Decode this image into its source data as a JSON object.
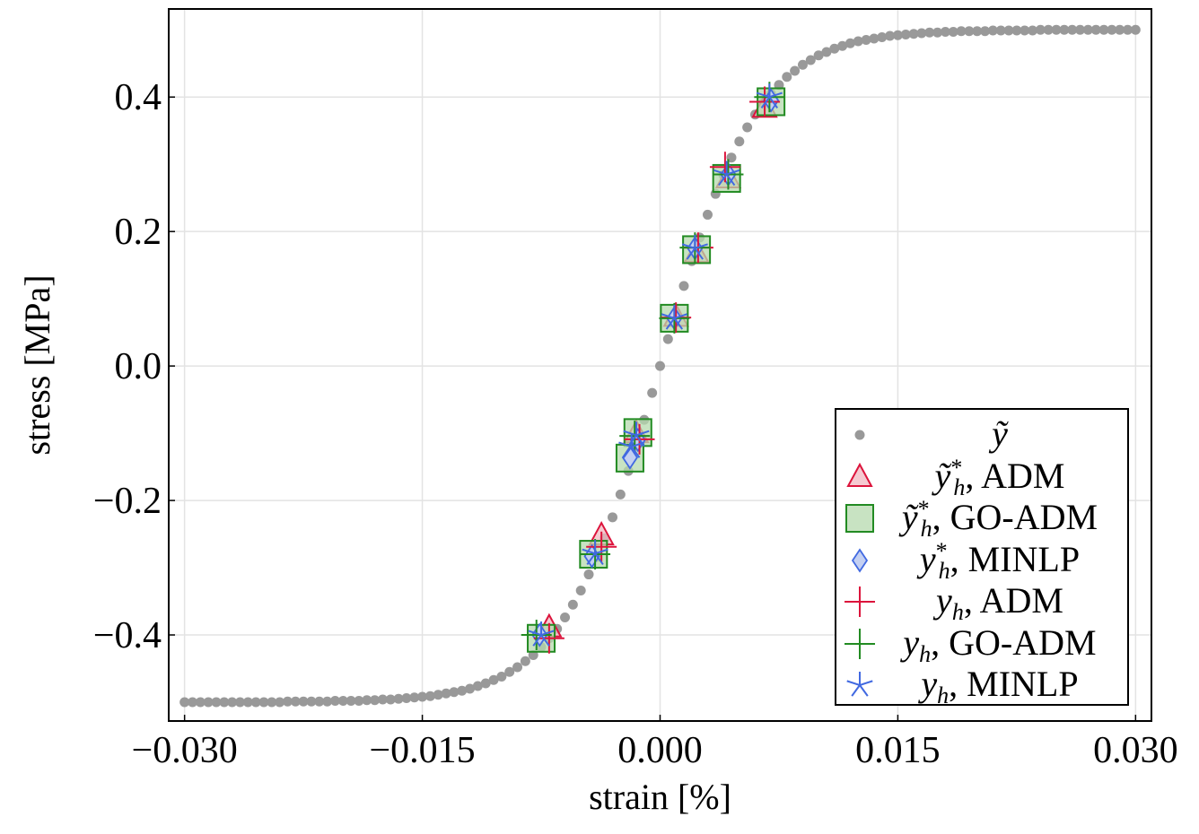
{
  "chart_data": {
    "type": "scatter",
    "xlabel": "strain [%]",
    "ylabel": "stress [MPa]",
    "xlim": [
      -0.031,
      0.031
    ],
    "ylim": [
      -0.528,
      0.531
    ],
    "xticks": [
      -0.03,
      -0.015,
      0.0,
      0.015,
      0.03
    ],
    "xtick_labels": [
      "−0.030",
      "−0.015",
      "0.000",
      "0.015",
      "0.030"
    ],
    "yticks": [
      -0.4,
      -0.2,
      0.0,
      0.2,
      0.4
    ],
    "ytick_labels": [
      "−0.4",
      "−0.2",
      "0.0",
      "0.2",
      "0.4"
    ],
    "grid": true,
    "legend_position": "bottom-right",
    "series": [
      {
        "label": {
          "symbol": "ỹ",
          "sup": "",
          "sub": "",
          "method": ""
        },
        "marker": "circle",
        "color": "#999999",
        "fill": "#999999",
        "x": [
          -0.03,
          -0.0295,
          -0.029,
          -0.0285,
          -0.028,
          -0.0275,
          -0.027,
          -0.0265,
          -0.026,
          -0.0255,
          -0.025,
          -0.0245,
          -0.024,
          -0.0235,
          -0.023,
          -0.0225,
          -0.022,
          -0.0215,
          -0.021,
          -0.0205,
          -0.02,
          -0.0195,
          -0.019,
          -0.0185,
          -0.018,
          -0.0175,
          -0.017,
          -0.0165,
          -0.016,
          -0.0155,
          -0.015,
          -0.0145,
          -0.014,
          -0.0135,
          -0.013,
          -0.0125,
          -0.012,
          -0.0115,
          -0.011,
          -0.0105,
          -0.01,
          -0.0095,
          -0.009,
          -0.0085,
          -0.008,
          -0.0075,
          -0.007,
          -0.0065,
          -0.006,
          -0.0055,
          -0.005,
          -0.0045,
          -0.004,
          -0.0035,
          -0.003,
          -0.0025,
          -0.002,
          -0.0015,
          -0.001,
          -0.0005,
          0,
          0.0005,
          0.001,
          0.0015,
          0.002,
          0.0025,
          0.003,
          0.0035,
          0.004,
          0.0045,
          0.005,
          0.0055,
          0.006,
          0.0065,
          0.007,
          0.0075,
          0.008,
          0.0085,
          0.009,
          0.0095,
          0.01,
          0.0105,
          0.011,
          0.0115,
          0.012,
          0.0125,
          0.013,
          0.0135,
          0.014,
          0.0145,
          0.015,
          0.0155,
          0.016,
          0.0165,
          0.017,
          0.0175,
          0.018,
          0.0185,
          0.019,
          0.0195,
          0.02,
          0.0205,
          0.021,
          0.0215,
          0.022,
          0.0225,
          0.023,
          0.0235,
          0.024,
          0.0245,
          0.025,
          0.0255,
          0.026,
          0.0265,
          0.027,
          0.0275,
          0.028,
          0.0285,
          0.029,
          0.0295,
          0.03
        ],
        "y": [
          -0.5,
          -0.5,
          -0.5,
          -0.5,
          -0.5,
          -0.5,
          -0.5,
          -0.5,
          -0.5,
          -0.5,
          -0.5,
          -0.5,
          -0.5,
          -0.499,
          -0.499,
          -0.499,
          -0.499,
          -0.499,
          -0.499,
          -0.498,
          -0.498,
          -0.498,
          -0.498,
          -0.497,
          -0.497,
          -0.496,
          -0.496,
          -0.495,
          -0.494,
          -0.493,
          -0.492,
          -0.491,
          -0.489,
          -0.487,
          -0.485,
          -0.483,
          -0.48,
          -0.476,
          -0.472,
          -0.467,
          -0.462,
          -0.455,
          -0.448,
          -0.439,
          -0.43,
          -0.418,
          -0.405,
          -0.391,
          -0.374,
          -0.355,
          -0.334,
          -0.31,
          -0.284,
          -0.256,
          -0.225,
          -0.191,
          -0.156,
          -0.119,
          -0.08,
          -0.04,
          0,
          0.04,
          0.08,
          0.119,
          0.156,
          0.191,
          0.225,
          0.256,
          0.284,
          0.31,
          0.334,
          0.355,
          0.374,
          0.391,
          0.405,
          0.418,
          0.43,
          0.439,
          0.448,
          0.455,
          0.462,
          0.467,
          0.472,
          0.476,
          0.48,
          0.483,
          0.485,
          0.487,
          0.489,
          0.491,
          0.492,
          0.493,
          0.494,
          0.495,
          0.496,
          0.496,
          0.497,
          0.497,
          0.498,
          0.498,
          0.498,
          0.498,
          0.499,
          0.499,
          0.499,
          0.499,
          0.499,
          0.499,
          0.5,
          0.5,
          0.5,
          0.5,
          0.5,
          0.5,
          0.5,
          0.5,
          0.5,
          0.5,
          0.5,
          0.5,
          0.5
        ]
      },
      {
        "label": {
          "symbol": "ỹ",
          "sup": "*",
          "sub": "h",
          "method": ", ADM"
        },
        "marker": "triangle",
        "color": "#dc143c",
        "fill": "#f2b8c2",
        "x": [
          -0.007,
          -0.0037,
          -0.0015,
          0.001,
          0.0023,
          0.0043,
          0.0066
        ],
        "y": [
          -0.389,
          -0.252,
          -0.1,
          0.073,
          0.168,
          0.279,
          0.384
        ]
      },
      {
        "label": {
          "symbol": "ỹ",
          "sup": "*",
          "sub": "h",
          "method": ", GO-ADM"
        },
        "marker": "square",
        "color": "#228b22",
        "fill": "#b5d9ad",
        "x": [
          -0.0075,
          -0.0042,
          -0.0014,
          -0.0019,
          0.0009,
          0.0023,
          0.0042,
          0.007
        ],
        "y": [
          -0.405,
          -0.28,
          -0.099,
          -0.137,
          0.071,
          0.173,
          0.279,
          0.393
        ]
      },
      {
        "label": {
          "symbol": "y",
          "sup": "*",
          "sub": "h",
          "method": ", MINLP"
        },
        "marker": "diamond",
        "color": "#4169e1",
        "fill": "#c4d0f2",
        "x": [
          -0.0076,
          -0.0043,
          -0.0019,
          -0.0014,
          0.0009,
          0.0022,
          0.0043,
          0.007
        ],
        "y": [
          -0.4,
          -0.283,
          -0.136,
          -0.11,
          0.071,
          0.175,
          0.285,
          0.395
        ]
      },
      {
        "label": {
          "symbol": "y",
          "sup": "",
          "sub": "h",
          "method": ", ADM"
        },
        "marker": "plus",
        "color": "#dc143c",
        "fill": "none",
        "x": [
          -0.007,
          -0.0037,
          -0.0013,
          0.001,
          0.0024,
          0.0041,
          0.0066
        ],
        "y": [
          -0.405,
          -0.269,
          -0.109,
          0.072,
          0.176,
          0.296,
          0.393
        ]
      },
      {
        "label": {
          "symbol": "y",
          "sup": "",
          "sub": "h",
          "method": ", GO-ADM"
        },
        "marker": "plus",
        "color": "#228b22",
        "fill": "none",
        "x": [
          -0.0078,
          -0.0041,
          -0.0016,
          0.0009,
          0.0022,
          0.0043,
          0.0069
        ],
        "y": [
          -0.4,
          -0.28,
          -0.104,
          0.071,
          0.176,
          0.285,
          0.4
        ]
      },
      {
        "label": {
          "symbol": "y",
          "sup": "",
          "sub": "h",
          "method": ", MINLP"
        },
        "marker": "star",
        "color": "#4169e1",
        "fill": "none",
        "x": [
          -0.0075,
          -0.0041,
          -0.0015,
          -0.0018,
          0.0009,
          0.0022,
          0.0042,
          0.0069
        ],
        "y": [
          -0.4,
          -0.279,
          -0.103,
          -0.12,
          0.071,
          0.175,
          0.285,
          0.4
        ]
      }
    ]
  }
}
